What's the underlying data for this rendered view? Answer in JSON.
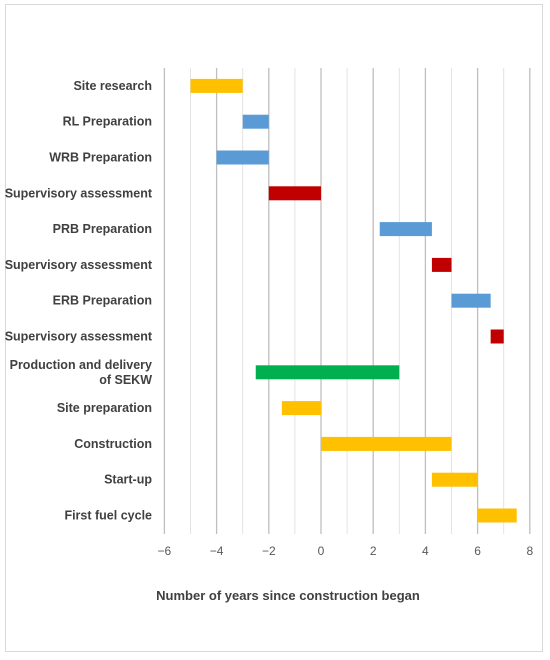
{
  "chart_data": {
    "type": "bar",
    "orientation": "horizontal-gantt",
    "xlabel": "Number of years since construction began",
    "xlim": [
      -7,
      8.5
    ],
    "xticks": [
      -6,
      -4,
      -2,
      0,
      2,
      4,
      6,
      8
    ],
    "xtick_labels": [
      "−6",
      "−4",
      "−2",
      "0",
      "2",
      "4",
      "6",
      "8"
    ],
    "grid": "vertical",
    "colors": {
      "orange": "#ffc000",
      "blue": "#5b9bd5",
      "red": "#c00000",
      "green": "#00b050"
    },
    "tasks": [
      {
        "label": [
          "Site research"
        ],
        "start": -5,
        "end": -3,
        "color": "orange"
      },
      {
        "label": [
          "RL Preparation"
        ],
        "start": -3,
        "end": -2,
        "color": "blue"
      },
      {
        "label": [
          "WRB Preparation"
        ],
        "start": -4,
        "end": -2,
        "color": "blue"
      },
      {
        "label": [
          "Supervisory assessment"
        ],
        "start": -2,
        "end": 0,
        "color": "red"
      },
      {
        "label": [
          "PRB Preparation"
        ],
        "start": 2.25,
        "end": 4.25,
        "color": "blue"
      },
      {
        "label": [
          "Supervisory assessment"
        ],
        "start": 4.25,
        "end": 5,
        "color": "red"
      },
      {
        "label": [
          "ERB Preparation"
        ],
        "start": 5,
        "end": 6.5,
        "color": "blue"
      },
      {
        "label": [
          "Supervisory assessment"
        ],
        "start": 6.5,
        "end": 7,
        "color": "red"
      },
      {
        "label": [
          "Production and delivery",
          "of SEKW"
        ],
        "start": -2.5,
        "end": 3,
        "color": "green"
      },
      {
        "label": [
          "Site preparation"
        ],
        "start": -1.5,
        "end": 0,
        "color": "orange"
      },
      {
        "label": [
          "Construction"
        ],
        "start": 0,
        "end": 5,
        "color": "orange"
      },
      {
        "label": [
          "Start-up"
        ],
        "start": 4.25,
        "end": 6,
        "color": "orange"
      },
      {
        "label": [
          "First fuel cycle"
        ],
        "start": 6,
        "end": 7.5,
        "color": "orange"
      }
    ]
  }
}
